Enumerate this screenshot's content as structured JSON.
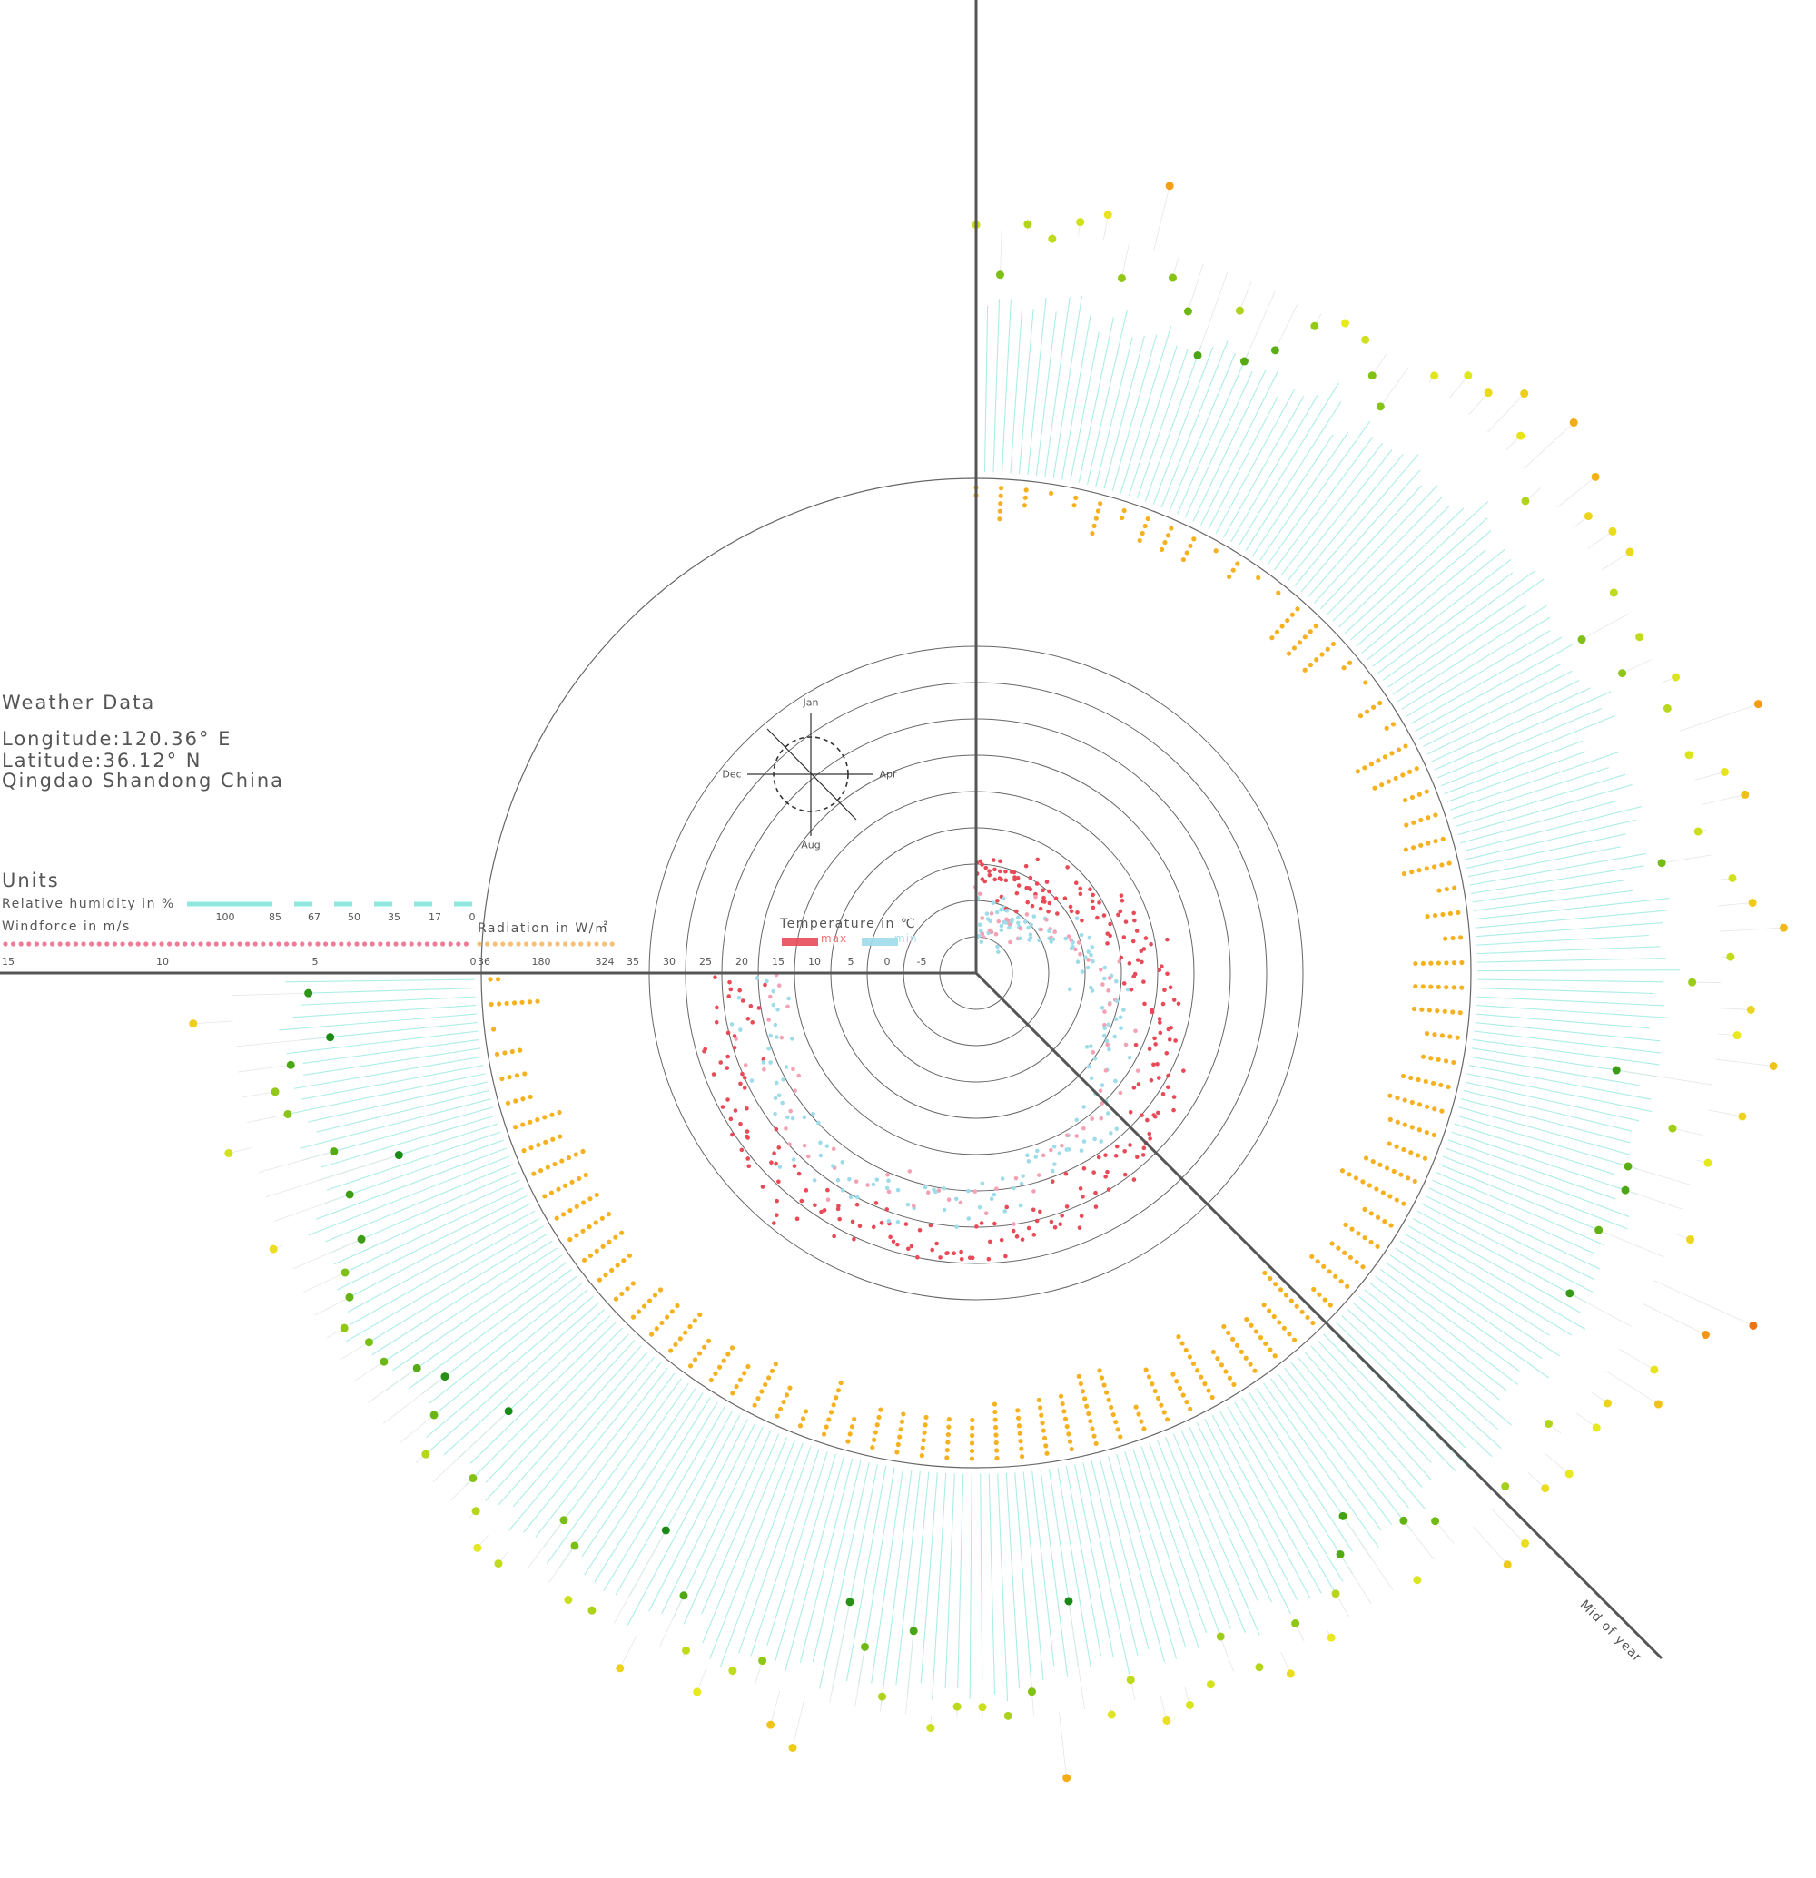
{
  "header": {
    "title": "Weather Data",
    "longitude": "Longitude:120.36° E",
    "latitude": "Latitude:36.12° N",
    "location": "Qingdao Shandong China"
  },
  "units": {
    "heading": "Units",
    "humidity_label": "Relative humidity in %",
    "humidity_ticks": [
      "100",
      "85",
      "67",
      "50",
      "35",
      "17",
      "0"
    ],
    "wind_label": "Windforce in m/s",
    "wind_ticks": [
      "15",
      "10",
      "5",
      "0"
    ],
    "radiation_label": "Radiation in W/㎡",
    "radiation_ticks": [
      "36",
      "180",
      "324"
    ],
    "temperature_label": "Temperature in ℃",
    "temperature_ticks": [
      "35",
      "30",
      "25",
      "20",
      "15",
      "10",
      "5",
      "0",
      "-5"
    ],
    "max_label": "max",
    "min_label": "min"
  },
  "compass": {
    "top": "Jan",
    "right": "Apr",
    "bottom": "Aug",
    "left": "Dec"
  },
  "mid_year_label": "Mid of year",
  "colors": {
    "humidity": "#8fe8de",
    "radiation": "#f5b120",
    "temp_max": "#e84a57",
    "temp_min": "#9fdcea",
    "temp_mid": "#f2a2b4",
    "wind_low": "#1a8a16",
    "wind_mid": "#e8ea20",
    "wind_high": "#e82a10",
    "axis": "#555555",
    "ring": "#666666"
  },
  "chart_data": {
    "type": "radial-scatter",
    "period": "one year, daily values, clockwise from January (top) through December",
    "series": [
      {
        "name": "max",
        "variable": "Temperature",
        "unit": "℃",
        "monthly": [
          3,
          5,
          11,
          16,
          22,
          25,
          28,
          29,
          26,
          20,
          12,
          5
        ],
        "range": [
          -5,
          35
        ]
      },
      {
        "name": "min",
        "variable": "Temperature",
        "unit": "℃",
        "monthly": [
          -3,
          -1,
          4,
          9,
          15,
          19,
          23,
          24,
          20,
          14,
          6,
          -1
        ],
        "range": [
          -5,
          35
        ]
      },
      {
        "variable": "Radiation",
        "unit": "W/㎡",
        "monthly": [
          110,
          150,
          190,
          230,
          250,
          240,
          210,
          200,
          190,
          150,
          110,
          95
        ],
        "range": [
          36,
          324
        ]
      },
      {
        "variable": "Relative humidity",
        "unit": "%",
        "monthly": [
          62,
          64,
          66,
          70,
          74,
          82,
          88,
          86,
          76,
          68,
          66,
          63
        ],
        "range": [
          0,
          100
        ]
      },
      {
        "variable": "Windforce",
        "unit": "m/s",
        "monthly": [
          8,
          8.5,
          9,
          9,
          8,
          7.5,
          7,
          6.5,
          6.5,
          7,
          8,
          8.5
        ],
        "range": [
          0,
          15
        ]
      }
    ]
  }
}
